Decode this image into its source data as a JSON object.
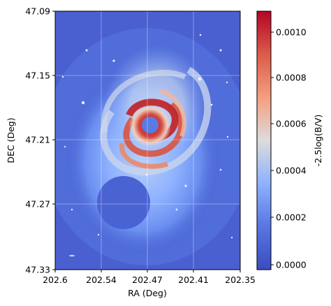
{
  "figure": {
    "x_label": "RA (Deg)",
    "y_label": "DEC (Deg)",
    "colorbar_label": "-2.5log(B/V)",
    "x_ticks": [
      "202.6",
      "202.54",
      "202.47",
      "202.41",
      "202.35"
    ],
    "y_ticks": [
      "47.09",
      "47.15",
      "47.21",
      "47.27",
      "47.33"
    ],
    "colorbar_ticks": [
      "0.0010",
      "0.0008",
      "0.0006",
      "0.0004",
      "0.0002",
      "0.0000"
    ],
    "colormap": [
      "#3b4cc0",
      "#6f92f3",
      "#aac7fd",
      "#dddcdc",
      "#f7b89c",
      "#e7745b",
      "#b40426"
    ],
    "grid": "on"
  }
}
